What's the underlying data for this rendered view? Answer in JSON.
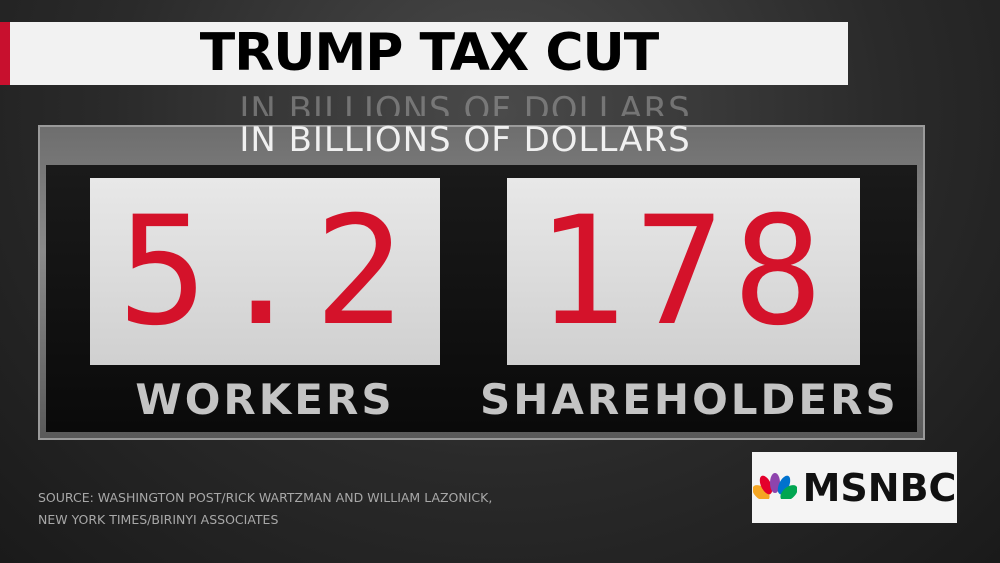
{
  "header": {
    "title": "TRUMP TAX CUT",
    "subtitle": "IN BILLIONS OF DOLLARS"
  },
  "panels": [
    {
      "value": 5.2,
      "label": "WORKERS"
    },
    {
      "value": 178,
      "label": "SHAREHOLDERS"
    }
  ],
  "source": [
    "SOURCE: WASHINGTON POST/RICK WARTZMAN AND WILLIAM LAZONICK,",
    "NEW YORK TIMES/BIRINYI ASSOCIATES"
  ],
  "logo": "MSNBC"
}
